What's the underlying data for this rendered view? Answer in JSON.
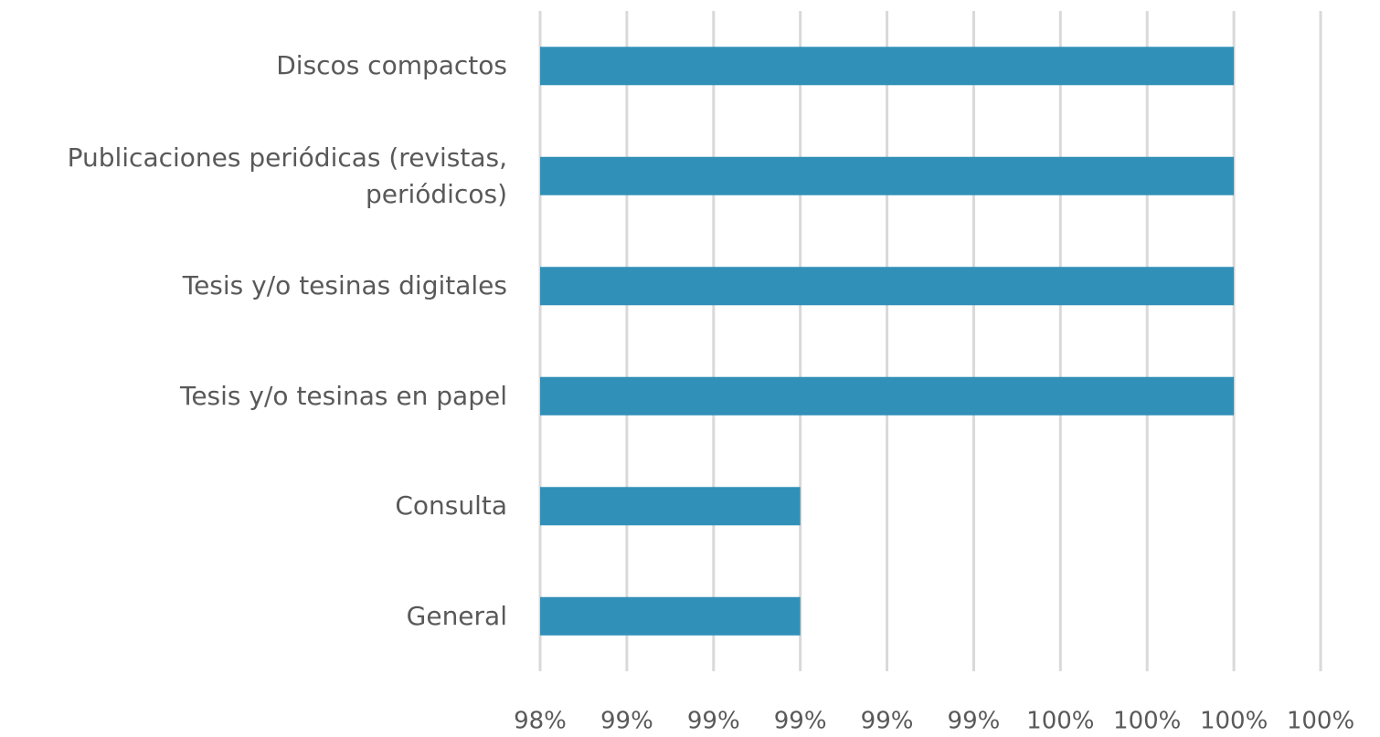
{
  "chart_data": {
    "type": "barh",
    "categories": [
      "Discos compactos",
      "Publicaciones periódicas (revistas, periódicos)",
      "Tesis y/o tesinas digitales",
      "Tesis y/o tesinas en papel",
      "Consulta",
      "General"
    ],
    "values": [
      100,
      100,
      100,
      100,
      99,
      99
    ],
    "color": "#3190b8",
    "xlim": [
      98.4,
      100.2
    ],
    "xticks": [
      {
        "value": 98.4,
        "label": "98%"
      },
      {
        "value": 98.6,
        "label": "99%"
      },
      {
        "value": 98.8,
        "label": "99%"
      },
      {
        "value": 99.0,
        "label": "99%"
      },
      {
        "value": 99.2,
        "label": "99%"
      },
      {
        "value": 99.4,
        "label": "99%"
      },
      {
        "value": 99.6,
        "label": "100%"
      },
      {
        "value": 99.8,
        "label": "100%"
      },
      {
        "value": 100.0,
        "label": "100%"
      },
      {
        "value": 100.2,
        "label": "100%"
      }
    ],
    "grid": true
  }
}
